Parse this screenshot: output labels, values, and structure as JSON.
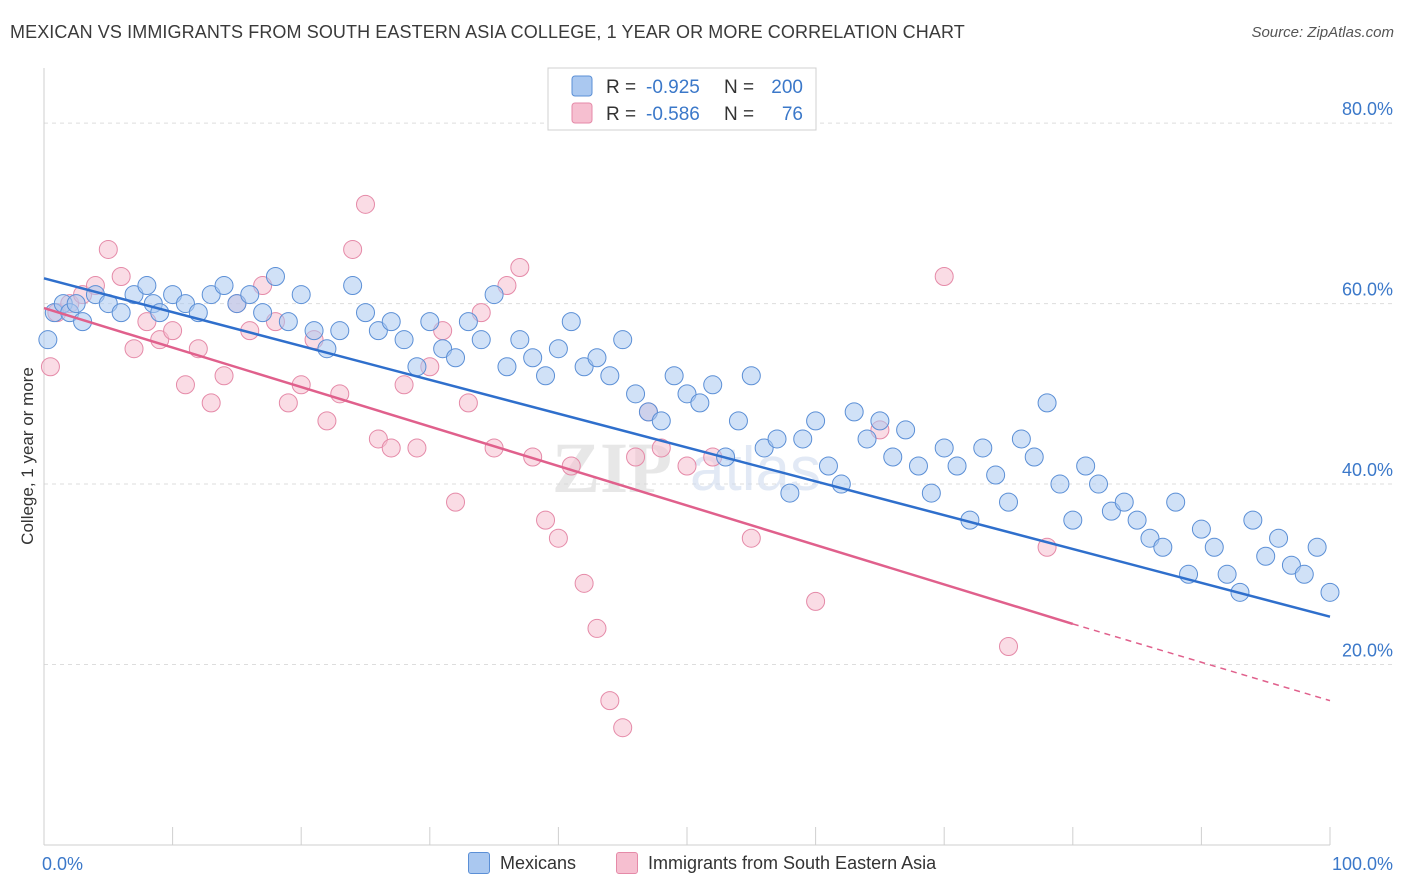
{
  "header": {
    "title": "MEXICAN VS IMMIGRANTS FROM SOUTH EASTERN ASIA COLLEGE, 1 YEAR OR MORE CORRELATION CHART",
    "source": "Source: ZipAtlas.com"
  },
  "watermark": {
    "zip": "ZIP",
    "atlas": "atlas"
  },
  "legend": {
    "rows": [
      {
        "r_label": "R = ",
        "r_value": "-0.925",
        "n_label": "N = ",
        "n_value": "200"
      },
      {
        "r_label": "R = ",
        "r_value": "-0.586",
        "n_label": "N = ",
        "n_value": "76"
      }
    ]
  },
  "bottom_legend": {
    "series_a": "Mexicans",
    "series_b": "Immigrants from South Eastern Asia"
  },
  "colors": {
    "blue_fill": "#aac8f0",
    "blue_stroke": "#5b8fd6",
    "blue_line": "#2f6fcc",
    "pink_fill": "#f6bfd0",
    "pink_stroke": "#e58aa8",
    "pink_line": "#e0608c",
    "axis_text": "#3b78c9",
    "grid": "#dddddd"
  },
  "chart_data": {
    "type": "scatter",
    "title": "MEXICAN VS IMMIGRANTS FROM SOUTH EASTERN ASIA COLLEGE, 1 YEAR OR MORE CORRELATION CHART",
    "xlabel": "",
    "ylabel": "College, 1 year or more",
    "xlim": [
      0,
      100
    ],
    "ylim": [
      0,
      85
    ],
    "x_tick_labels": [
      "0.0%",
      "100.0%"
    ],
    "y_ticks": [
      {
        "value": 20,
        "label": "20.0%"
      },
      {
        "value": 40,
        "label": "40.0%"
      },
      {
        "value": 60,
        "label": "60.0%"
      },
      {
        "value": 80,
        "label": "80.0%"
      }
    ],
    "grid": true,
    "legend_position": "top-center",
    "series": [
      {
        "name": "Mexicans",
        "r": -0.925,
        "n": 200,
        "trend": {
          "x": [
            0,
            100
          ],
          "y": [
            62.8,
            25.3
          ],
          "dashed_from": null
        },
        "points": [
          [
            0.3,
            56
          ],
          [
            0.8,
            59
          ],
          [
            1.5,
            60
          ],
          [
            2,
            59
          ],
          [
            2.5,
            60
          ],
          [
            3,
            58
          ],
          [
            4,
            61
          ],
          [
            5,
            60
          ],
          [
            6,
            59
          ],
          [
            7,
            61
          ],
          [
            8,
            62
          ],
          [
            8.5,
            60
          ],
          [
            9,
            59
          ],
          [
            10,
            61
          ],
          [
            11,
            60
          ],
          [
            12,
            59
          ],
          [
            13,
            61
          ],
          [
            14,
            62
          ],
          [
            15,
            60
          ],
          [
            16,
            61
          ],
          [
            17,
            59
          ],
          [
            18,
            63
          ],
          [
            19,
            58
          ],
          [
            20,
            61
          ],
          [
            21,
            57
          ],
          [
            22,
            55
          ],
          [
            23,
            57
          ],
          [
            24,
            62
          ],
          [
            25,
            59
          ],
          [
            26,
            57
          ],
          [
            27,
            58
          ],
          [
            28,
            56
          ],
          [
            29,
            53
          ],
          [
            30,
            58
          ],
          [
            31,
            55
          ],
          [
            32,
            54
          ],
          [
            33,
            58
          ],
          [
            34,
            56
          ],
          [
            35,
            61
          ],
          [
            36,
            53
          ],
          [
            37,
            56
          ],
          [
            38,
            54
          ],
          [
            39,
            52
          ],
          [
            40,
            55
          ],
          [
            41,
            58
          ],
          [
            42,
            53
          ],
          [
            43,
            54
          ],
          [
            44,
            52
          ],
          [
            45,
            56
          ],
          [
            46,
            50
          ],
          [
            47,
            48
          ],
          [
            48,
            47
          ],
          [
            49,
            52
          ],
          [
            50,
            50
          ],
          [
            51,
            49
          ],
          [
            52,
            51
          ],
          [
            53,
            43
          ],
          [
            54,
            47
          ],
          [
            55,
            52
          ],
          [
            56,
            44
          ],
          [
            57,
            45
          ],
          [
            58,
            39
          ],
          [
            59,
            45
          ],
          [
            60,
            47
          ],
          [
            61,
            42
          ],
          [
            62,
            40
          ],
          [
            63,
            48
          ],
          [
            64,
            45
          ],
          [
            65,
            47
          ],
          [
            66,
            43
          ],
          [
            67,
            46
          ],
          [
            68,
            42
          ],
          [
            69,
            39
          ],
          [
            70,
            44
          ],
          [
            71,
            42
          ],
          [
            72,
            36
          ],
          [
            73,
            44
          ],
          [
            74,
            41
          ],
          [
            75,
            38
          ],
          [
            76,
            45
          ],
          [
            77,
            43
          ],
          [
            78,
            49
          ],
          [
            79,
            40
          ],
          [
            80,
            36
          ],
          [
            81,
            42
          ],
          [
            82,
            40
          ],
          [
            83,
            37
          ],
          [
            84,
            38
          ],
          [
            85,
            36
          ],
          [
            86,
            34
          ],
          [
            87,
            33
          ],
          [
            88,
            38
          ],
          [
            89,
            30
          ],
          [
            90,
            35
          ],
          [
            91,
            33
          ],
          [
            92,
            30
          ],
          [
            93,
            28
          ],
          [
            94,
            36
          ],
          [
            95,
            32
          ],
          [
            96,
            34
          ],
          [
            97,
            31
          ],
          [
            98,
            30
          ],
          [
            99,
            33
          ],
          [
            100,
            28
          ]
        ]
      },
      {
        "name": "Immigrants from South Eastern Asia",
        "r": -0.586,
        "n": 76,
        "trend": {
          "x": [
            0,
            80,
            100
          ],
          "y": [
            59.5,
            24.5,
            16.0
          ],
          "dashed_from": 80
        },
        "points": [
          [
            0.5,
            53
          ],
          [
            1,
            59
          ],
          [
            2,
            60
          ],
          [
            3,
            61
          ],
          [
            4,
            62
          ],
          [
            5,
            66
          ],
          [
            6,
            63
          ],
          [
            7,
            55
          ],
          [
            8,
            58
          ],
          [
            9,
            56
          ],
          [
            10,
            57
          ],
          [
            11,
            51
          ],
          [
            12,
            55
          ],
          [
            13,
            49
          ],
          [
            14,
            52
          ],
          [
            15,
            60
          ],
          [
            16,
            57
          ],
          [
            17,
            62
          ],
          [
            18,
            58
          ],
          [
            19,
            49
          ],
          [
            20,
            51
          ],
          [
            21,
            56
          ],
          [
            22,
            47
          ],
          [
            23,
            50
          ],
          [
            24,
            66
          ],
          [
            25,
            71
          ],
          [
            26,
            45
          ],
          [
            27,
            44
          ],
          [
            28,
            51
          ],
          [
            29,
            44
          ],
          [
            30,
            53
          ],
          [
            31,
            57
          ],
          [
            32,
            38
          ],
          [
            33,
            49
          ],
          [
            34,
            59
          ],
          [
            35,
            44
          ],
          [
            36,
            62
          ],
          [
            37,
            64
          ],
          [
            38,
            43
          ],
          [
            39,
            36
          ],
          [
            40,
            34
          ],
          [
            41,
            42
          ],
          [
            42,
            29
          ],
          [
            43,
            24
          ],
          [
            44,
            16
          ],
          [
            45,
            13
          ],
          [
            46,
            43
          ],
          [
            47,
            48
          ],
          [
            48,
            44
          ],
          [
            50,
            42
          ],
          [
            52,
            43
          ],
          [
            55,
            34
          ],
          [
            60,
            27
          ],
          [
            65,
            46
          ],
          [
            70,
            63
          ],
          [
            75,
            22
          ],
          [
            78,
            33
          ]
        ]
      }
    ]
  }
}
